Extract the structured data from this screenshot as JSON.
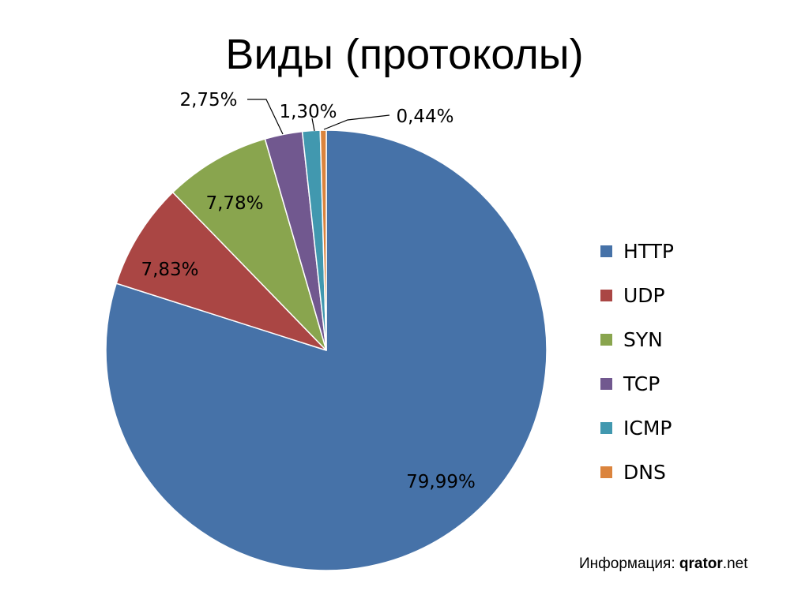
{
  "title": "Виды (протоколы)",
  "source": {
    "prefix": "Информация: ",
    "brand": "qrator",
    "suffix": ".net"
  },
  "chart_data": {
    "type": "pie",
    "title": "",
    "legend_position": "right",
    "start_angle_deg": 0,
    "direction": "clockwise",
    "slices": [
      {
        "name": "HTTP",
        "value": 79.99,
        "label": "79,99%",
        "color": "#4672A8"
      },
      {
        "name": "UDP",
        "value": 7.83,
        "label": "7,83%",
        "color": "#AA4644"
      },
      {
        "name": "SYN",
        "value": 7.78,
        "label": "7,78%",
        "color": "#89A54E"
      },
      {
        "name": "TCP",
        "value": 2.75,
        "label": "2,75%",
        "color": "#71588F"
      },
      {
        "name": "ICMP",
        "value": 1.3,
        "label": "1,30%",
        "color": "#4198AF"
      },
      {
        "name": "DNS",
        "value": 0.44,
        "label": "0,44%",
        "color": "#DB843D"
      }
    ]
  }
}
